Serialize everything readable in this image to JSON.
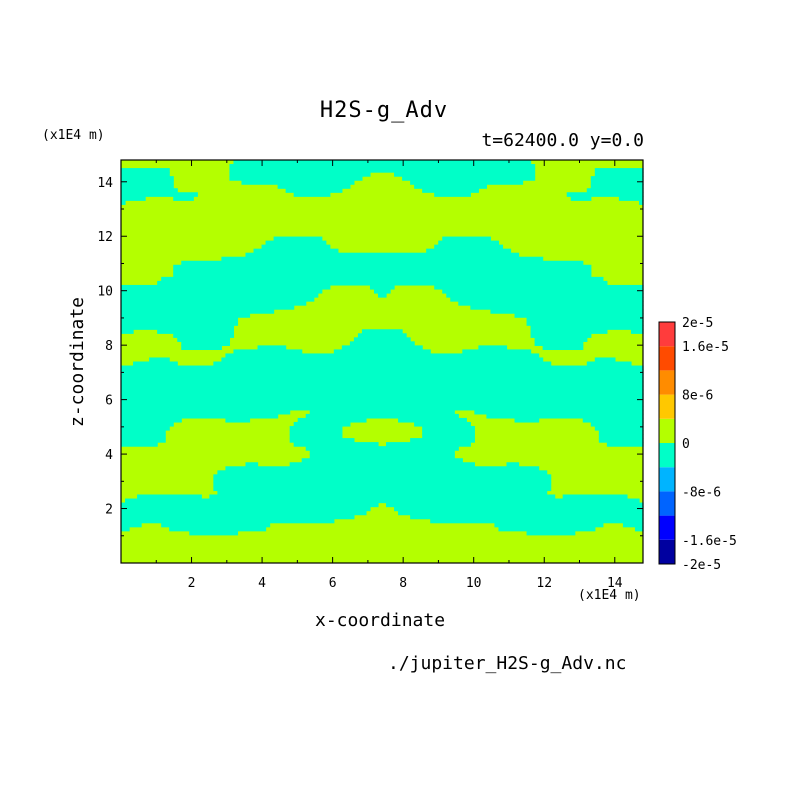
{
  "chart_data": {
    "type": "heatmap",
    "title": "H2S-g_Adv",
    "subtitle": "t=62400.0 y=0.0",
    "xlabel": "x-coordinate",
    "ylabel": "z-coordinate",
    "x_unit": "(x1E4 m)",
    "z_unit": "(x1E4 m)",
    "xlim": [
      0,
      14.8
    ],
    "ylim": [
      0,
      14.8
    ],
    "x_ticks": [
      "2",
      "4",
      "6",
      "8",
      "10",
      "12",
      "14"
    ],
    "y_ticks": [
      "2",
      "4",
      "6",
      "8",
      "10",
      "12",
      "14"
    ],
    "x_tick_values": [
      2,
      4,
      6,
      8,
      10,
      12,
      14
    ],
    "y_tick_values": [
      2,
      4,
      6,
      8,
      10,
      12,
      14
    ],
    "colorbar": {
      "levels": [
        -2e-05,
        -1.6e-05,
        -1.2e-05,
        -8e-06,
        -4e-06,
        0,
        4e-06,
        8e-06,
        1.2e-05,
        1.6e-05,
        2e-05
      ],
      "labels": [
        "2e-5",
        "1.6e-5",
        "8e-6",
        "0",
        "-8e-6",
        "-1.6e-5",
        "-2e-5"
      ],
      "label_values": [
        2e-05,
        1.6e-05,
        8e-06,
        0,
        -8e-06,
        -1.6e-05,
        -2e-05
      ],
      "colors": [
        "#0000a0",
        "#0000ff",
        "#0064ff",
        "#00b4ff",
        "#00ffc8",
        "#b4ff00",
        "#ffc800",
        "#ff8c00",
        "#ff4b00",
        "#ff3c3c"
      ]
    },
    "dominant_values": {
      "negative_band": "-4e-6 to 0",
      "positive_band": "0 to 4e-6",
      "negative_color": "#00ffc8",
      "positive_color": "#b4ff00"
    }
  },
  "source_file": "./jupiter_H2S-g_Adv.nc"
}
